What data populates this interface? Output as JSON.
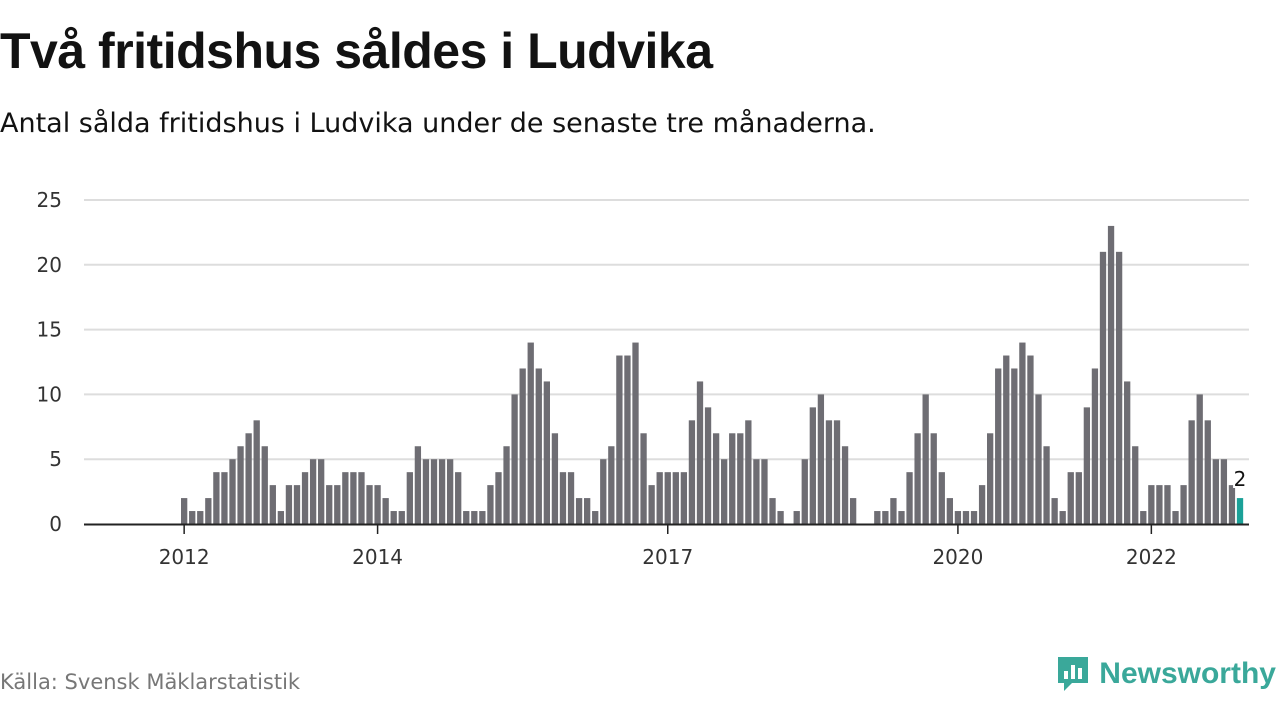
{
  "header": {
    "title": "Två fritidshus såldes i Ludvika",
    "subtitle": "Antal sålda fritidshus i Ludvika under de senaste tre månaderna."
  },
  "footer": {
    "source": "Källa: Svensk Mäklarstatistik",
    "brand": "Newsworthy",
    "brand_icon": "newsworthy-logo-icon"
  },
  "colors": {
    "bar": "#6e6d73",
    "highlight": "#1ba198",
    "grid": "#dddddd",
    "axis": "#222222",
    "brand": "#3aa89a"
  },
  "chart_data": {
    "type": "bar",
    "title": "Två fritidshus såldes i Ludvika",
    "subtitle": "Antal sålda fritidshus i Ludvika under de senaste tre månaderna.",
    "xlabel": "",
    "ylabel": "",
    "ylim": [
      0,
      25
    ],
    "yticks": [
      0,
      5,
      10,
      15,
      20,
      25
    ],
    "grid": true,
    "x_start": "2011-01",
    "x_end": "2022-12",
    "xticks": [
      {
        "date": "2012-01",
        "label": "2012"
      },
      {
        "date": "2014-01",
        "label": "2014"
      },
      {
        "date": "2017-01",
        "label": "2017"
      },
      {
        "date": "2020-01",
        "label": "2020"
      },
      {
        "date": "2022-01",
        "label": "2022"
      }
    ],
    "series": [
      {
        "values": [
          {
            "x": "2012-01",
            "y": 2
          },
          {
            "x": "2012-02",
            "y": 1
          },
          {
            "x": "2012-03",
            "y": 1
          },
          {
            "x": "2012-04",
            "y": 2
          },
          {
            "x": "2012-05",
            "y": 4
          },
          {
            "x": "2012-06",
            "y": 4
          },
          {
            "x": "2012-07",
            "y": 5
          },
          {
            "x": "2012-08",
            "y": 6
          },
          {
            "x": "2012-09",
            "y": 7
          },
          {
            "x": "2012-10",
            "y": 8
          },
          {
            "x": "2012-11",
            "y": 6
          },
          {
            "x": "2012-12",
            "y": 3
          },
          {
            "x": "2013-01",
            "y": 1
          },
          {
            "x": "2013-02",
            "y": 3
          },
          {
            "x": "2013-03",
            "y": 3
          },
          {
            "x": "2013-04",
            "y": 4
          },
          {
            "x": "2013-05",
            "y": 5
          },
          {
            "x": "2013-06",
            "y": 5
          },
          {
            "x": "2013-07",
            "y": 3
          },
          {
            "x": "2013-08",
            "y": 3
          },
          {
            "x": "2013-09",
            "y": 4
          },
          {
            "x": "2013-10",
            "y": 4
          },
          {
            "x": "2013-11",
            "y": 4
          },
          {
            "x": "2013-12",
            "y": 3
          },
          {
            "x": "2014-01",
            "y": 3
          },
          {
            "x": "2014-02",
            "y": 2
          },
          {
            "x": "2014-03",
            "y": 1
          },
          {
            "x": "2014-04",
            "y": 1
          },
          {
            "x": "2014-05",
            "y": 4
          },
          {
            "x": "2014-06",
            "y": 6
          },
          {
            "x": "2014-07",
            "y": 5
          },
          {
            "x": "2014-08",
            "y": 5
          },
          {
            "x": "2014-09",
            "y": 5
          },
          {
            "x": "2014-10",
            "y": 5
          },
          {
            "x": "2014-11",
            "y": 4
          },
          {
            "x": "2014-12",
            "y": 1
          },
          {
            "x": "2015-01",
            "y": 1
          },
          {
            "x": "2015-02",
            "y": 1
          },
          {
            "x": "2015-03",
            "y": 3
          },
          {
            "x": "2015-04",
            "y": 4
          },
          {
            "x": "2015-05",
            "y": 6
          },
          {
            "x": "2015-06",
            "y": 10
          },
          {
            "x": "2015-07",
            "y": 12
          },
          {
            "x": "2015-08",
            "y": 14
          },
          {
            "x": "2015-09",
            "y": 12
          },
          {
            "x": "2015-10",
            "y": 11
          },
          {
            "x": "2015-11",
            "y": 7
          },
          {
            "x": "2015-12",
            "y": 4
          },
          {
            "x": "2016-01",
            "y": 4
          },
          {
            "x": "2016-02",
            "y": 2
          },
          {
            "x": "2016-03",
            "y": 2
          },
          {
            "x": "2016-04",
            "y": 1
          },
          {
            "x": "2016-05",
            "y": 5
          },
          {
            "x": "2016-06",
            "y": 6
          },
          {
            "x": "2016-07",
            "y": 13
          },
          {
            "x": "2016-08",
            "y": 13
          },
          {
            "x": "2016-09",
            "y": 14
          },
          {
            "x": "2016-10",
            "y": 7
          },
          {
            "x": "2016-11",
            "y": 3
          },
          {
            "x": "2016-12",
            "y": 4
          },
          {
            "x": "2017-01",
            "y": 4
          },
          {
            "x": "2017-02",
            "y": 4
          },
          {
            "x": "2017-03",
            "y": 4
          },
          {
            "x": "2017-04",
            "y": 8
          },
          {
            "x": "2017-05",
            "y": 11
          },
          {
            "x": "2017-06",
            "y": 9
          },
          {
            "x": "2017-07",
            "y": 7
          },
          {
            "x": "2017-08",
            "y": 5
          },
          {
            "x": "2017-09",
            "y": 7
          },
          {
            "x": "2017-10",
            "y": 7
          },
          {
            "x": "2017-11",
            "y": 8
          },
          {
            "x": "2017-12",
            "y": 5
          },
          {
            "x": "2018-01",
            "y": 5
          },
          {
            "x": "2018-02",
            "y": 2
          },
          {
            "x": "2018-03",
            "y": 1
          },
          {
            "x": "2018-04",
            "y": 0
          },
          {
            "x": "2018-05",
            "y": 1
          },
          {
            "x": "2018-06",
            "y": 5
          },
          {
            "x": "2018-07",
            "y": 9
          },
          {
            "x": "2018-08",
            "y": 10
          },
          {
            "x": "2018-09",
            "y": 8
          },
          {
            "x": "2018-10",
            "y": 8
          },
          {
            "x": "2018-11",
            "y": 6
          },
          {
            "x": "2018-12",
            "y": 2
          },
          {
            "x": "2019-01",
            "y": 0
          },
          {
            "x": "2019-02",
            "y": 0
          },
          {
            "x": "2019-03",
            "y": 1
          },
          {
            "x": "2019-04",
            "y": 1
          },
          {
            "x": "2019-05",
            "y": 2
          },
          {
            "x": "2019-06",
            "y": 1
          },
          {
            "x": "2019-07",
            "y": 4
          },
          {
            "x": "2019-08",
            "y": 7
          },
          {
            "x": "2019-09",
            "y": 10
          },
          {
            "x": "2019-10",
            "y": 7
          },
          {
            "x": "2019-11",
            "y": 4
          },
          {
            "x": "2019-12",
            "y": 2
          },
          {
            "x": "2020-01",
            "y": 1
          },
          {
            "x": "2020-02",
            "y": 1
          },
          {
            "x": "2020-03",
            "y": 1
          },
          {
            "x": "2020-04",
            "y": 3
          },
          {
            "x": "2020-05",
            "y": 7
          },
          {
            "x": "2020-06",
            "y": 12
          },
          {
            "x": "2020-07",
            "y": 13
          },
          {
            "x": "2020-08",
            "y": 12
          },
          {
            "x": "2020-09",
            "y": 14
          },
          {
            "x": "2020-10",
            "y": 13
          },
          {
            "x": "2020-11",
            "y": 10
          },
          {
            "x": "2020-12",
            "y": 6
          },
          {
            "x": "2021-01",
            "y": 2
          },
          {
            "x": "2021-02",
            "y": 1
          },
          {
            "x": "2021-03",
            "y": 4
          },
          {
            "x": "2021-04",
            "y": 4
          },
          {
            "x": "2021-05",
            "y": 9
          },
          {
            "x": "2021-06",
            "y": 12
          },
          {
            "x": "2021-07",
            "y": 21
          },
          {
            "x": "2021-08",
            "y": 23
          },
          {
            "x": "2021-09",
            "y": 21
          },
          {
            "x": "2021-10",
            "y": 11
          },
          {
            "x": "2021-11",
            "y": 6
          },
          {
            "x": "2021-12",
            "y": 1
          },
          {
            "x": "2022-01",
            "y": 3
          },
          {
            "x": "2022-02",
            "y": 3
          },
          {
            "x": "2022-03",
            "y": 3
          },
          {
            "x": "2022-04",
            "y": 1
          },
          {
            "x": "2022-05",
            "y": 3
          },
          {
            "x": "2022-06",
            "y": 8
          },
          {
            "x": "2022-07",
            "y": 10
          },
          {
            "x": "2022-08",
            "y": 8
          },
          {
            "x": "2022-09",
            "y": 5
          },
          {
            "x": "2022-10",
            "y": 5
          },
          {
            "x": "2022-11",
            "y": 3
          },
          {
            "x": "2022-12",
            "y": 2
          }
        ]
      }
    ],
    "highlight": {
      "x": "2022-12",
      "y": 2,
      "label": "2"
    }
  }
}
